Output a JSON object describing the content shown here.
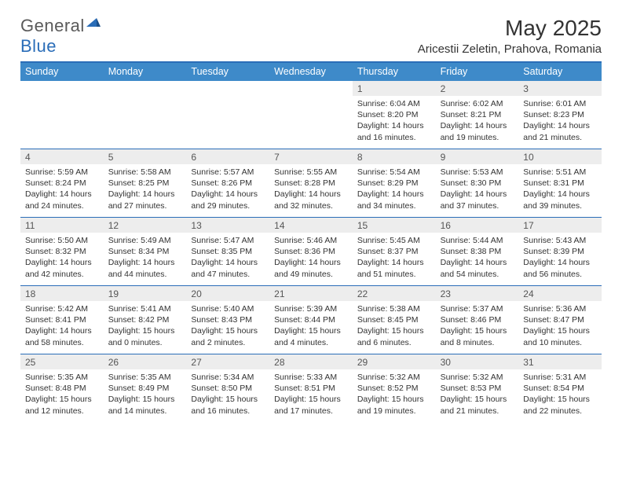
{
  "logo": {
    "general": "General",
    "blue": "Blue"
  },
  "title": "May 2025",
  "location": "Aricestii Zeletin, Prahova, Romania",
  "colors": {
    "header_bg": "#3e8ac9",
    "border": "#2a6db8",
    "daynum_bg": "#ededed",
    "text": "#333333",
    "white": "#ffffff"
  },
  "day_labels": [
    "Sunday",
    "Monday",
    "Tuesday",
    "Wednesday",
    "Thursday",
    "Friday",
    "Saturday"
  ],
  "weeks": [
    [
      {
        "n": "",
        "sr": "",
        "ss": "",
        "dl": ""
      },
      {
        "n": "",
        "sr": "",
        "ss": "",
        "dl": ""
      },
      {
        "n": "",
        "sr": "",
        "ss": "",
        "dl": ""
      },
      {
        "n": "",
        "sr": "",
        "ss": "",
        "dl": ""
      },
      {
        "n": "1",
        "sr": "Sunrise: 6:04 AM",
        "ss": "Sunset: 8:20 PM",
        "dl": "Daylight: 14 hours and 16 minutes."
      },
      {
        "n": "2",
        "sr": "Sunrise: 6:02 AM",
        "ss": "Sunset: 8:21 PM",
        "dl": "Daylight: 14 hours and 19 minutes."
      },
      {
        "n": "3",
        "sr": "Sunrise: 6:01 AM",
        "ss": "Sunset: 8:23 PM",
        "dl": "Daylight: 14 hours and 21 minutes."
      }
    ],
    [
      {
        "n": "4",
        "sr": "Sunrise: 5:59 AM",
        "ss": "Sunset: 8:24 PM",
        "dl": "Daylight: 14 hours and 24 minutes."
      },
      {
        "n": "5",
        "sr": "Sunrise: 5:58 AM",
        "ss": "Sunset: 8:25 PM",
        "dl": "Daylight: 14 hours and 27 minutes."
      },
      {
        "n": "6",
        "sr": "Sunrise: 5:57 AM",
        "ss": "Sunset: 8:26 PM",
        "dl": "Daylight: 14 hours and 29 minutes."
      },
      {
        "n": "7",
        "sr": "Sunrise: 5:55 AM",
        "ss": "Sunset: 8:28 PM",
        "dl": "Daylight: 14 hours and 32 minutes."
      },
      {
        "n": "8",
        "sr": "Sunrise: 5:54 AM",
        "ss": "Sunset: 8:29 PM",
        "dl": "Daylight: 14 hours and 34 minutes."
      },
      {
        "n": "9",
        "sr": "Sunrise: 5:53 AM",
        "ss": "Sunset: 8:30 PM",
        "dl": "Daylight: 14 hours and 37 minutes."
      },
      {
        "n": "10",
        "sr": "Sunrise: 5:51 AM",
        "ss": "Sunset: 8:31 PM",
        "dl": "Daylight: 14 hours and 39 minutes."
      }
    ],
    [
      {
        "n": "11",
        "sr": "Sunrise: 5:50 AM",
        "ss": "Sunset: 8:32 PM",
        "dl": "Daylight: 14 hours and 42 minutes."
      },
      {
        "n": "12",
        "sr": "Sunrise: 5:49 AM",
        "ss": "Sunset: 8:34 PM",
        "dl": "Daylight: 14 hours and 44 minutes."
      },
      {
        "n": "13",
        "sr": "Sunrise: 5:47 AM",
        "ss": "Sunset: 8:35 PM",
        "dl": "Daylight: 14 hours and 47 minutes."
      },
      {
        "n": "14",
        "sr": "Sunrise: 5:46 AM",
        "ss": "Sunset: 8:36 PM",
        "dl": "Daylight: 14 hours and 49 minutes."
      },
      {
        "n": "15",
        "sr": "Sunrise: 5:45 AM",
        "ss": "Sunset: 8:37 PM",
        "dl": "Daylight: 14 hours and 51 minutes."
      },
      {
        "n": "16",
        "sr": "Sunrise: 5:44 AM",
        "ss": "Sunset: 8:38 PM",
        "dl": "Daylight: 14 hours and 54 minutes."
      },
      {
        "n": "17",
        "sr": "Sunrise: 5:43 AM",
        "ss": "Sunset: 8:39 PM",
        "dl": "Daylight: 14 hours and 56 minutes."
      }
    ],
    [
      {
        "n": "18",
        "sr": "Sunrise: 5:42 AM",
        "ss": "Sunset: 8:41 PM",
        "dl": "Daylight: 14 hours and 58 minutes."
      },
      {
        "n": "19",
        "sr": "Sunrise: 5:41 AM",
        "ss": "Sunset: 8:42 PM",
        "dl": "Daylight: 15 hours and 0 minutes."
      },
      {
        "n": "20",
        "sr": "Sunrise: 5:40 AM",
        "ss": "Sunset: 8:43 PM",
        "dl": "Daylight: 15 hours and 2 minutes."
      },
      {
        "n": "21",
        "sr": "Sunrise: 5:39 AM",
        "ss": "Sunset: 8:44 PM",
        "dl": "Daylight: 15 hours and 4 minutes."
      },
      {
        "n": "22",
        "sr": "Sunrise: 5:38 AM",
        "ss": "Sunset: 8:45 PM",
        "dl": "Daylight: 15 hours and 6 minutes."
      },
      {
        "n": "23",
        "sr": "Sunrise: 5:37 AM",
        "ss": "Sunset: 8:46 PM",
        "dl": "Daylight: 15 hours and 8 minutes."
      },
      {
        "n": "24",
        "sr": "Sunrise: 5:36 AM",
        "ss": "Sunset: 8:47 PM",
        "dl": "Daylight: 15 hours and 10 minutes."
      }
    ],
    [
      {
        "n": "25",
        "sr": "Sunrise: 5:35 AM",
        "ss": "Sunset: 8:48 PM",
        "dl": "Daylight: 15 hours and 12 minutes."
      },
      {
        "n": "26",
        "sr": "Sunrise: 5:35 AM",
        "ss": "Sunset: 8:49 PM",
        "dl": "Daylight: 15 hours and 14 minutes."
      },
      {
        "n": "27",
        "sr": "Sunrise: 5:34 AM",
        "ss": "Sunset: 8:50 PM",
        "dl": "Daylight: 15 hours and 16 minutes."
      },
      {
        "n": "28",
        "sr": "Sunrise: 5:33 AM",
        "ss": "Sunset: 8:51 PM",
        "dl": "Daylight: 15 hours and 17 minutes."
      },
      {
        "n": "29",
        "sr": "Sunrise: 5:32 AM",
        "ss": "Sunset: 8:52 PM",
        "dl": "Daylight: 15 hours and 19 minutes."
      },
      {
        "n": "30",
        "sr": "Sunrise: 5:32 AM",
        "ss": "Sunset: 8:53 PM",
        "dl": "Daylight: 15 hours and 21 minutes."
      },
      {
        "n": "31",
        "sr": "Sunrise: 5:31 AM",
        "ss": "Sunset: 8:54 PM",
        "dl": "Daylight: 15 hours and 22 minutes."
      }
    ]
  ]
}
